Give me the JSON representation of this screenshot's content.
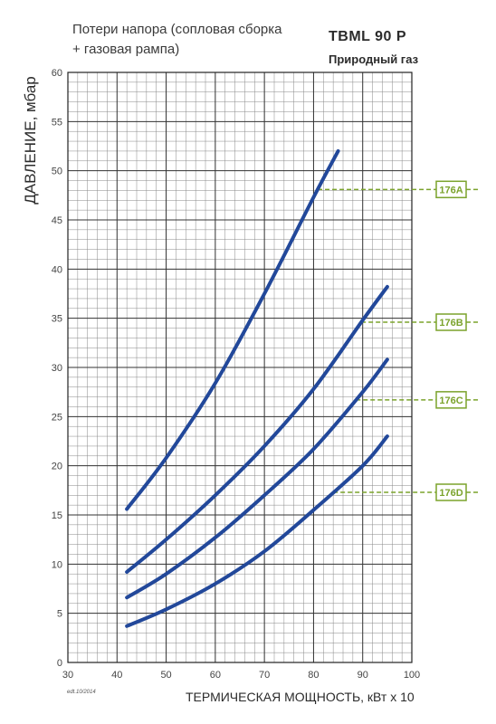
{
  "header": {
    "subtitle": "Потери напора (сопловая сборка + газовая рампа)",
    "model": "TBML 90 P",
    "fuel": "Природный газ"
  },
  "footer": {
    "edition": "edt.10/2014"
  },
  "colors": {
    "curve": "#22489a",
    "tag": "#7ba32c",
    "grid": "#555555"
  },
  "chart_data": {
    "type": "line",
    "title": "Потери напора (сопловая сборка + газовая рампа)",
    "xlabel": "ТЕРМИЧЕСКАЯ МОЩНОСТЬ, кВт x 10",
    "ylabel": "ДАВЛЕНИЕ, мбар",
    "xlim": [
      30,
      100
    ],
    "ylim": [
      0,
      60
    ],
    "xticks": [
      30,
      40,
      50,
      60,
      70,
      80,
      90,
      100
    ],
    "yticks": [
      0,
      5,
      10,
      15,
      20,
      25,
      30,
      35,
      40,
      45,
      50,
      55,
      60
    ],
    "grid": true,
    "series": [
      {
        "name": "176A",
        "x": [
          42,
          50,
          60,
          70,
          80,
          85
        ],
        "y": [
          15.6,
          20.8,
          28.4,
          37.5,
          47.3,
          52.0
        ],
        "label_at_y": 48.1
      },
      {
        "name": "176B",
        "x": [
          42,
          50,
          60,
          70,
          80,
          90,
          95
        ],
        "y": [
          9.2,
          12.5,
          17.0,
          22.0,
          27.8,
          34.8,
          38.2
        ],
        "label_at_y": 34.6
      },
      {
        "name": "176C",
        "x": [
          42,
          50,
          60,
          70,
          80,
          90,
          95
        ],
        "y": [
          6.6,
          9.0,
          12.7,
          17.0,
          21.7,
          27.5,
          30.8
        ],
        "label_at_y": 26.7
      },
      {
        "name": "176D",
        "x": [
          42,
          50,
          60,
          70,
          80,
          90,
          95
        ],
        "y": [
          3.7,
          5.4,
          8.0,
          11.3,
          15.5,
          20.0,
          23.0
        ],
        "label_at_y": 17.3
      }
    ]
  }
}
